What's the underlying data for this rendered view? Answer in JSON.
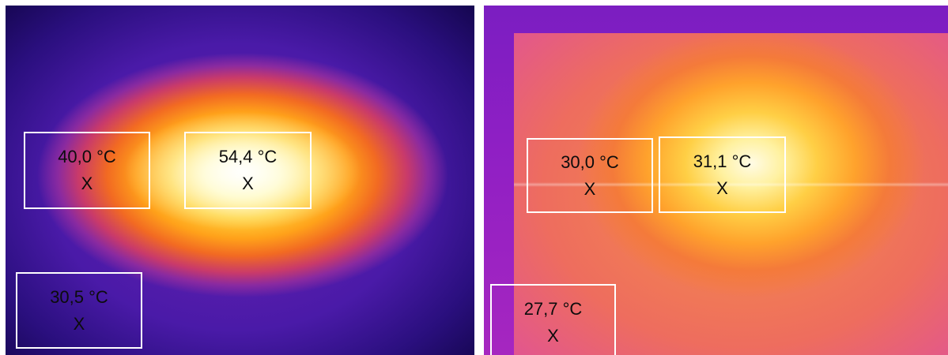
{
  "left_image": {
    "roi_center": {
      "temperature": "54,4 °C",
      "marker": "X"
    },
    "roi_left": {
      "temperature": "40,0 °C",
      "marker": "X"
    },
    "roi_corner": {
      "temperature": "30,5 °C",
      "marker": "X"
    }
  },
  "right_image": {
    "roi_center": {
      "temperature": "31,1 °C",
      "marker": "X"
    },
    "roi_left": {
      "temperature": "30,0 °C",
      "marker": "X"
    },
    "roi_corner": {
      "temperature": "27,7 °C",
      "marker": "X"
    }
  }
}
